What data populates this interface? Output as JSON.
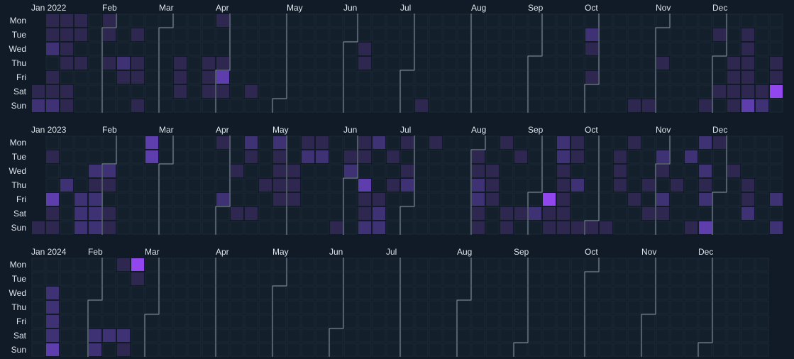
{
  "chart_data": {
    "type": "heatmap",
    "title": "",
    "day_labels": [
      "Mon",
      "Tue",
      "Wed",
      "Thu",
      "Fri",
      "Sat",
      "Sun"
    ],
    "grid": true,
    "month_boundaries": true,
    "colors": {
      "background": "#111b27",
      "empty_cell": "#141f2c",
      "cell_border": "#1b2836",
      "boundary_line": "#8a94a1",
      "label_text": "#dde3ea",
      "scale": [
        "#2e2851",
        "#3e3275",
        "#5e3ead",
        "#9146ee"
      ]
    },
    "years": [
      {
        "year": "2022",
        "month_labels": [
          {
            "label": "Jan 2022",
            "week": 0
          },
          {
            "label": "Feb",
            "week": 5
          },
          {
            "label": "Mar",
            "week": 9
          },
          {
            "label": "Apr",
            "week": 13
          },
          {
            "label": "May",
            "week": 18
          },
          {
            "label": "Jun",
            "week": 22
          },
          {
            "label": "Jul",
            "week": 26
          },
          {
            "label": "Aug",
            "week": 31
          },
          {
            "label": "Sep",
            "week": 35
          },
          {
            "label": "Oct",
            "week": 39
          },
          {
            "label": "Nov",
            "week": 44
          },
          {
            "label": "Dec",
            "week": 48
          }
        ],
        "start_day": 5,
        "weeks": 53,
        "cells": [
          [
            0,
            5,
            1
          ],
          [
            0,
            6,
            2
          ],
          [
            1,
            0,
            1
          ],
          [
            1,
            1,
            1
          ],
          [
            1,
            2,
            2
          ],
          [
            1,
            4,
            1
          ],
          [
            1,
            5,
            1
          ],
          [
            1,
            6,
            2
          ],
          [
            2,
            0,
            1
          ],
          [
            2,
            1,
            1
          ],
          [
            2,
            2,
            1
          ],
          [
            2,
            3,
            1
          ],
          [
            2,
            5,
            1
          ],
          [
            2,
            6,
            1
          ],
          [
            3,
            0,
            1
          ],
          [
            3,
            1,
            1
          ],
          [
            3,
            3,
            1
          ],
          [
            5,
            0,
            1
          ],
          [
            5,
            1,
            1
          ],
          [
            5,
            3,
            1
          ],
          [
            6,
            3,
            2
          ],
          [
            6,
            4,
            1
          ],
          [
            7,
            1,
            1
          ],
          [
            7,
            3,
            1
          ],
          [
            7,
            4,
            1
          ],
          [
            7,
            6,
            1
          ],
          [
            10,
            3,
            1
          ],
          [
            10,
            4,
            1
          ],
          [
            10,
            5,
            1
          ],
          [
            12,
            3,
            1
          ],
          [
            12,
            4,
            1
          ],
          [
            12,
            5,
            1
          ],
          [
            13,
            0,
            1
          ],
          [
            13,
            3,
            1
          ],
          [
            13,
            4,
            3
          ],
          [
            13,
            5,
            1
          ],
          [
            15,
            5,
            1
          ],
          [
            23,
            2,
            1
          ],
          [
            23,
            3,
            1
          ],
          [
            27,
            6,
            1
          ],
          [
            39,
            1,
            2
          ],
          [
            39,
            2,
            1
          ],
          [
            39,
            4,
            1
          ],
          [
            42,
            6,
            1
          ],
          [
            43,
            6,
            1
          ],
          [
            44,
            3,
            1
          ],
          [
            47,
            6,
            1
          ],
          [
            48,
            1,
            1
          ],
          [
            48,
            5,
            1
          ],
          [
            49,
            3,
            1
          ],
          [
            49,
            4,
            1
          ],
          [
            49,
            5,
            1
          ],
          [
            49,
            6,
            1
          ],
          [
            50,
            1,
            1
          ],
          [
            50,
            2,
            1
          ],
          [
            50,
            3,
            1
          ],
          [
            50,
            4,
            1
          ],
          [
            50,
            5,
            1
          ],
          [
            50,
            6,
            3
          ],
          [
            51,
            5,
            1
          ],
          [
            51,
            6,
            2
          ],
          [
            52,
            3,
            1
          ],
          [
            52,
            4,
            1
          ],
          [
            52,
            5,
            4
          ]
        ]
      },
      {
        "year": "2023",
        "month_labels": [
          {
            "label": "Jan 2023",
            "week": 0
          },
          {
            "label": "Feb",
            "week": 5
          },
          {
            "label": "Mar",
            "week": 9
          },
          {
            "label": "Apr",
            "week": 13
          },
          {
            "label": "May",
            "week": 17
          },
          {
            "label": "Jun",
            "week": 22
          },
          {
            "label": "Jul",
            "week": 26
          },
          {
            "label": "Aug",
            "week": 31
          },
          {
            "label": "Sep",
            "week": 35
          },
          {
            "label": "Oct",
            "week": 39
          },
          {
            "label": "Nov",
            "week": 44
          },
          {
            "label": "Dec",
            "week": 48
          }
        ],
        "start_day": 6,
        "weeks": 53,
        "cells": [
          [
            0,
            6,
            1
          ],
          [
            1,
            1,
            1
          ],
          [
            1,
            4,
            3
          ],
          [
            1,
            5,
            1
          ],
          [
            1,
            6,
            1
          ],
          [
            2,
            3,
            2
          ],
          [
            3,
            4,
            2
          ],
          [
            3,
            5,
            2
          ],
          [
            3,
            6,
            2
          ],
          [
            4,
            2,
            2
          ],
          [
            4,
            3,
            1
          ],
          [
            4,
            4,
            2
          ],
          [
            4,
            5,
            2
          ],
          [
            4,
            6,
            2
          ],
          [
            5,
            2,
            2
          ],
          [
            5,
            3,
            1
          ],
          [
            5,
            5,
            1
          ],
          [
            5,
            6,
            1
          ],
          [
            8,
            0,
            3
          ],
          [
            8,
            1,
            3
          ],
          [
            13,
            0,
            1
          ],
          [
            13,
            4,
            2
          ],
          [
            14,
            2,
            1
          ],
          [
            14,
            5,
            1
          ],
          [
            15,
            0,
            2
          ],
          [
            15,
            1,
            1
          ],
          [
            15,
            5,
            1
          ],
          [
            16,
            3,
            1
          ],
          [
            17,
            0,
            2
          ],
          [
            17,
            1,
            1
          ],
          [
            17,
            2,
            1
          ],
          [
            17,
            3,
            1
          ],
          [
            17,
            4,
            1
          ],
          [
            18,
            2,
            1
          ],
          [
            18,
            3,
            1
          ],
          [
            18,
            4,
            1
          ],
          [
            19,
            0,
            1
          ],
          [
            19,
            1,
            2
          ],
          [
            20,
            0,
            1
          ],
          [
            20,
            1,
            2
          ],
          [
            21,
            6,
            1
          ],
          [
            22,
            1,
            1
          ],
          [
            22,
            2,
            2
          ],
          [
            23,
            0,
            1
          ],
          [
            23,
            1,
            1
          ],
          [
            23,
            3,
            3
          ],
          [
            23,
            4,
            1
          ],
          [
            23,
            5,
            1
          ],
          [
            23,
            6,
            2
          ],
          [
            24,
            0,
            2
          ],
          [
            24,
            4,
            1
          ],
          [
            24,
            5,
            2
          ],
          [
            24,
            6,
            2
          ],
          [
            25,
            1,
            1
          ],
          [
            25,
            3,
            1
          ],
          [
            26,
            0,
            1
          ],
          [
            26,
            2,
            1
          ],
          [
            26,
            3,
            2
          ],
          [
            28,
            0,
            1
          ],
          [
            31,
            1,
            1
          ],
          [
            31,
            2,
            1
          ],
          [
            31,
            3,
            2
          ],
          [
            31,
            4,
            2
          ],
          [
            31,
            5,
            1
          ],
          [
            31,
            6,
            1
          ],
          [
            32,
            2,
            1
          ],
          [
            32,
            3,
            1
          ],
          [
            32,
            4,
            1
          ],
          [
            33,
            0,
            1
          ],
          [
            33,
            5,
            1
          ],
          [
            33,
            6,
            1
          ],
          [
            34,
            1,
            1
          ],
          [
            34,
            5,
            1
          ],
          [
            35,
            5,
            2
          ],
          [
            36,
            4,
            4
          ],
          [
            36,
            5,
            1
          ],
          [
            36,
            6,
            1
          ],
          [
            37,
            0,
            2
          ],
          [
            37,
            1,
            2
          ],
          [
            37,
            2,
            1
          ],
          [
            37,
            3,
            1
          ],
          [
            37,
            4,
            1
          ],
          [
            37,
            5,
            1
          ],
          [
            37,
            6,
            1
          ],
          [
            38,
            0,
            1
          ],
          [
            38,
            1,
            1
          ],
          [
            38,
            3,
            2
          ],
          [
            38,
            6,
            1
          ],
          [
            39,
            6,
            1
          ],
          [
            40,
            6,
            1
          ],
          [
            41,
            1,
            1
          ],
          [
            41,
            2,
            1
          ],
          [
            41,
            3,
            1
          ],
          [
            42,
            0,
            1
          ],
          [
            42,
            4,
            1
          ],
          [
            43,
            3,
            1
          ],
          [
            43,
            5,
            1
          ],
          [
            44,
            1,
            2
          ],
          [
            44,
            2,
            1
          ],
          [
            44,
            4,
            2
          ],
          [
            44,
            5,
            1
          ],
          [
            45,
            3,
            1
          ],
          [
            46,
            1,
            2
          ],
          [
            46,
            6,
            1
          ],
          [
            47,
            0,
            2
          ],
          [
            47,
            2,
            2
          ],
          [
            47,
            3,
            1
          ],
          [
            47,
            4,
            2
          ],
          [
            47,
            6,
            3
          ],
          [
            48,
            0,
            1
          ],
          [
            49,
            2,
            1
          ],
          [
            50,
            3,
            1
          ],
          [
            50,
            4,
            1
          ],
          [
            50,
            5,
            2
          ],
          [
            52,
            4,
            2
          ],
          [
            52,
            6,
            2
          ]
        ]
      },
      {
        "year": "2024",
        "month_labels": [
          {
            "label": "Jan 2024",
            "week": 0
          },
          {
            "label": "Feb",
            "week": 4
          },
          {
            "label": "Mar",
            "week": 8
          },
          {
            "label": "Apr",
            "week": 13
          },
          {
            "label": "May",
            "week": 17
          },
          {
            "label": "Jun",
            "week": 21
          },
          {
            "label": "Jul",
            "week": 25
          },
          {
            "label": "Aug",
            "week": 30
          },
          {
            "label": "Sep",
            "week": 34
          },
          {
            "label": "Oct",
            "week": 39
          },
          {
            "label": "Nov",
            "week": 43
          },
          {
            "label": "Dec",
            "week": 47
          }
        ],
        "start_day": 0,
        "weeks": 52,
        "cells": [
          [
            1,
            2,
            2
          ],
          [
            1,
            3,
            2
          ],
          [
            1,
            4,
            2
          ],
          [
            1,
            5,
            2
          ],
          [
            1,
            6,
            3
          ],
          [
            4,
            5,
            2
          ],
          [
            4,
            6,
            2
          ],
          [
            5,
            5,
            2
          ],
          [
            6,
            0,
            1
          ],
          [
            6,
            5,
            2
          ],
          [
            6,
            6,
            1
          ],
          [
            7,
            0,
            4
          ],
          [
            7,
            1,
            1
          ]
        ]
      }
    ]
  }
}
